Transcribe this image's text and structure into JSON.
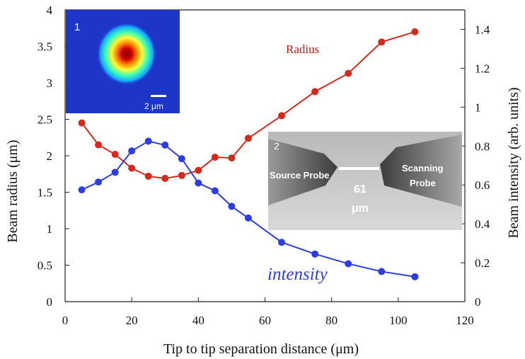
{
  "chart_data": {
    "type": "line",
    "xlabel": "Tip to tip separation distance  (μm)",
    "ylabel_left": "Beam radius (μm)",
    "ylabel_right": "Beam intensity (arb. units)",
    "xlim": [
      0,
      120
    ],
    "ylim_left": [
      0,
      4
    ],
    "ylim_right": [
      0,
      1.5
    ],
    "x_ticks": [
      "0",
      "20",
      "40",
      "60",
      "80",
      "100",
      "120"
    ],
    "y_left_ticks": [
      "0",
      "0.5",
      "1",
      "1.5",
      "2",
      "2.5",
      "3",
      "3.5",
      "4"
    ],
    "y_right_ticks": [
      "0",
      "0.2",
      "0.4",
      "0.6",
      "0.8",
      "1",
      "1.2",
      "1.4"
    ],
    "grid": false,
    "series": [
      {
        "name": "Radius",
        "axis": "left",
        "color": "#d42a1e",
        "x": [
          5,
          10,
          15,
          20,
          25,
          30,
          35,
          40,
          45,
          50,
          55,
          65,
          75,
          85,
          95,
          105
        ],
        "values": [
          2.45,
          2.15,
          2.02,
          1.83,
          1.72,
          1.69,
          1.73,
          1.8,
          1.98,
          1.97,
          2.24,
          2.55,
          2.88,
          3.13,
          3.56,
          3.7
        ]
      },
      {
        "name": "intensity",
        "axis": "right",
        "color": "#2e3de2",
        "x": [
          5,
          10,
          15,
          20,
          25,
          30,
          35,
          40,
          45,
          50,
          55,
          65,
          75,
          85,
          95,
          105
        ],
        "values": [
          0.575,
          0.615,
          0.665,
          0.775,
          0.825,
          0.805,
          0.735,
          0.61,
          0.57,
          0.49,
          0.43,
          0.305,
          0.245,
          0.195,
          0.155,
          0.128
        ]
      }
    ],
    "insets": [
      {
        "index": "1",
        "scale_bar": "2 μm"
      },
      {
        "index": "2",
        "left_label": "Source Probe",
        "right_label_line1": "Scanning",
        "right_label_line2": "Probe",
        "gap_label_line1": "61",
        "gap_label_line2": "μm"
      }
    ]
  }
}
